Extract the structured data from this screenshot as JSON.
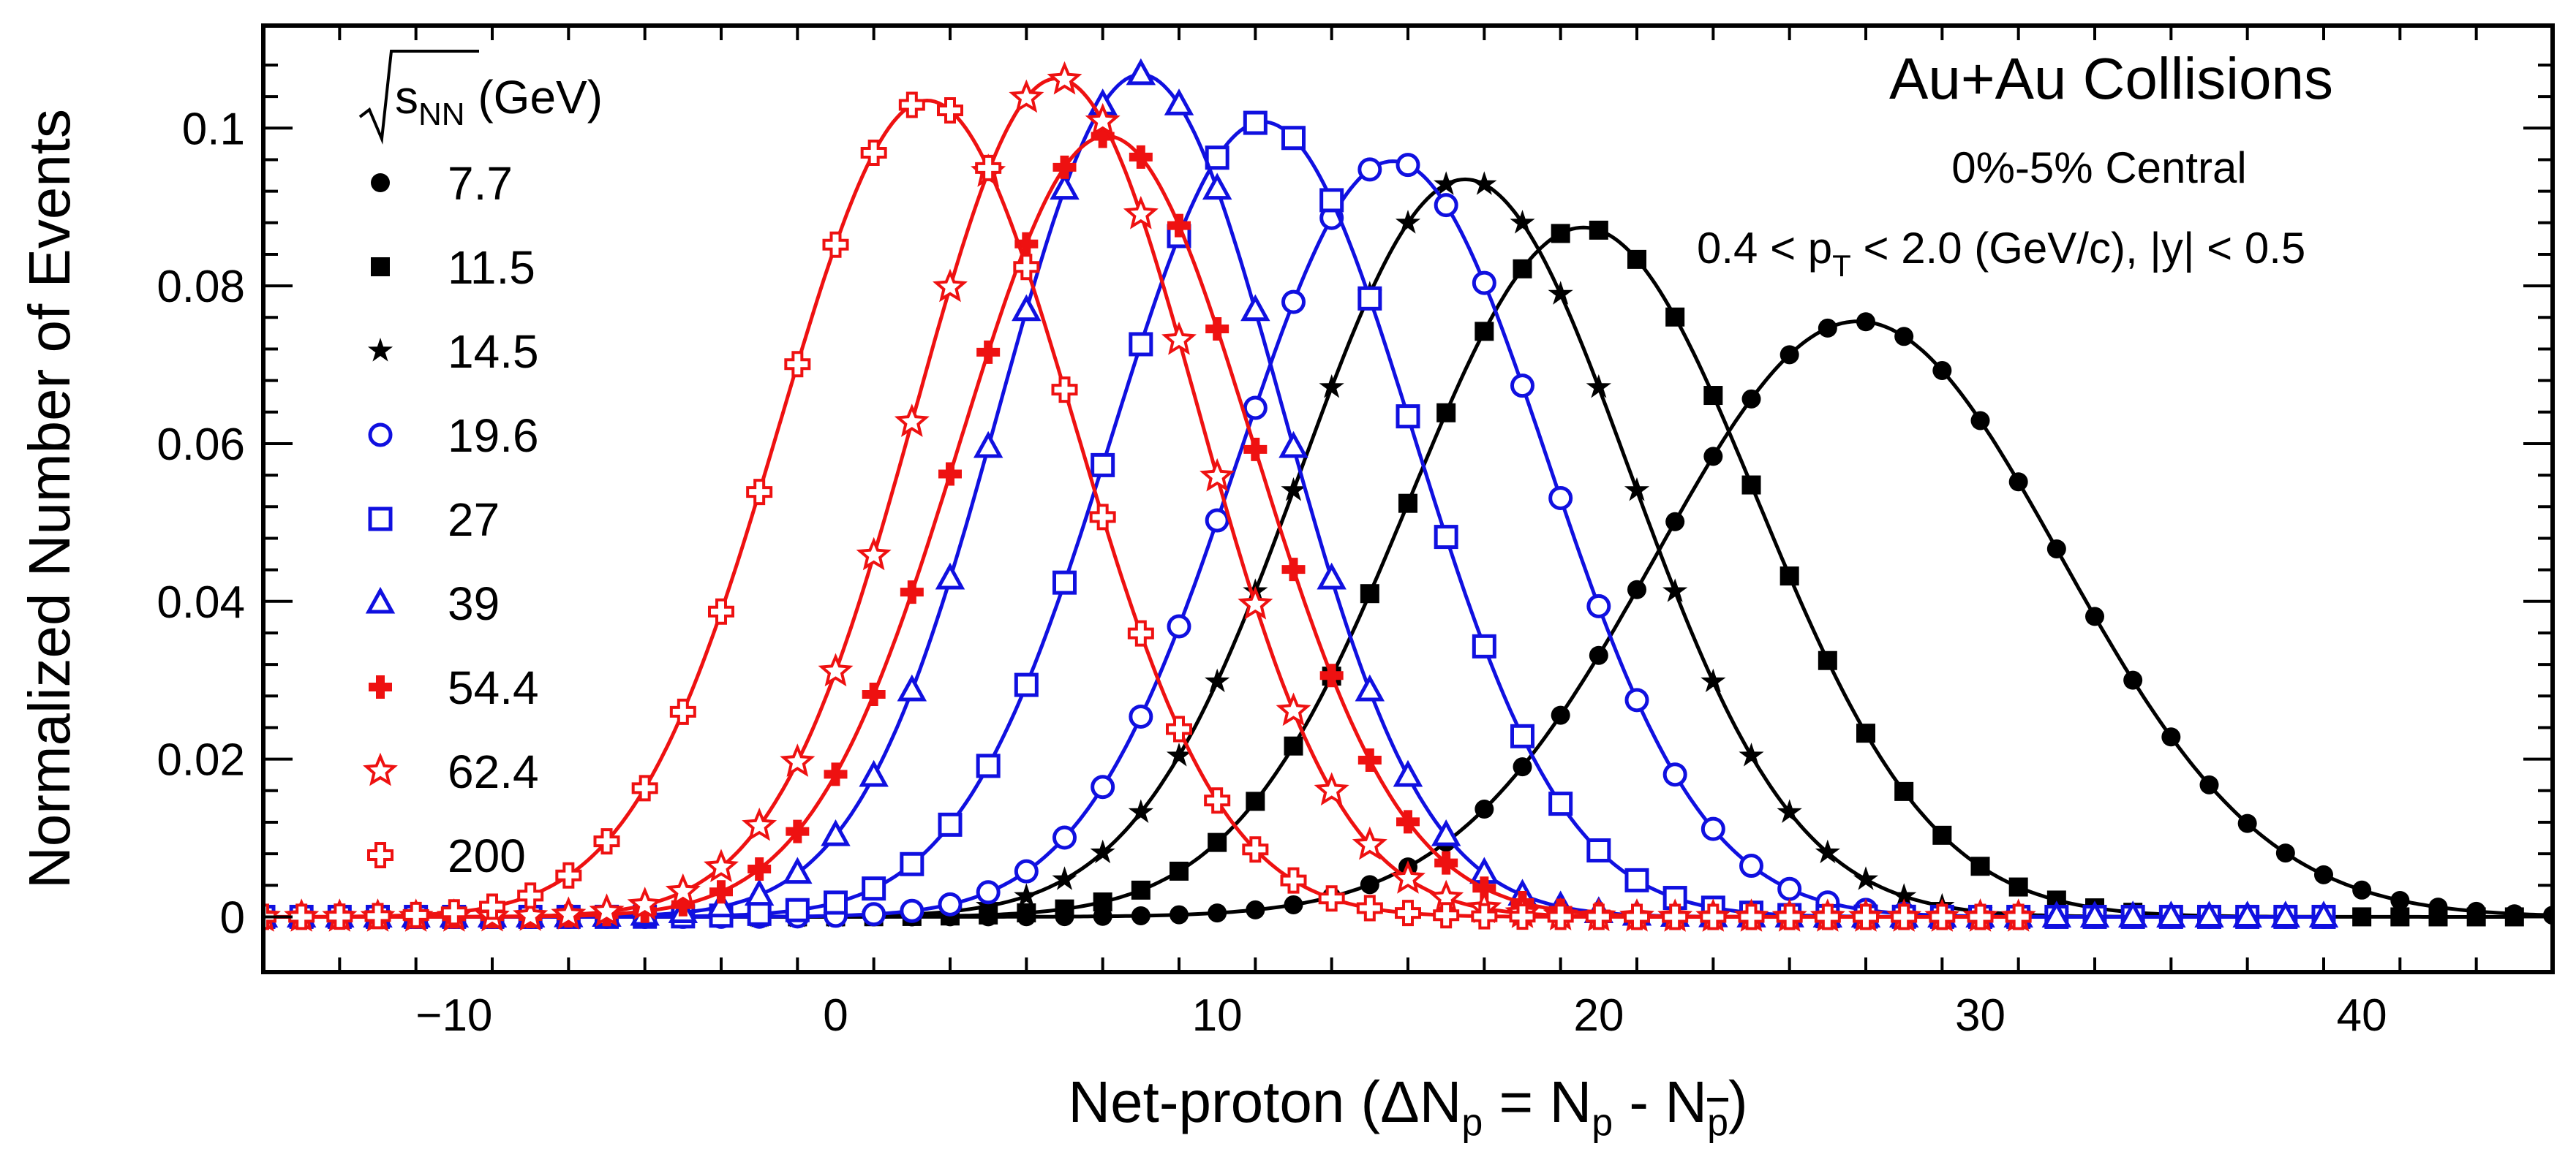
{
  "chart_data": {
    "type": "line",
    "title": "",
    "xlabel": "Net-proton (ΔNp = Np - Np̄)",
    "xlabel_parts": {
      "main": "Net-proton (ΔN",
      "sub1": "p",
      "mid": " = N",
      "sub2": "p",
      "end": " - N",
      "sub3": "p",
      "close": ")"
    },
    "ylabel": "Normalized Number of Events",
    "xlim": [
      -15,
      45
    ],
    "ylim": [
      -0.007,
      0.113
    ],
    "xticks": [
      -10,
      0,
      10,
      20,
      30,
      40
    ],
    "xtick_labels": [
      "−10",
      "0",
      "10",
      "20",
      "30",
      "40"
    ],
    "yticks": [
      0,
      0.02,
      0.04,
      0.06,
      0.08,
      0.1
    ],
    "ytick_labels": [
      "0",
      "0.02",
      "0.04",
      "0.06",
      "0.08",
      "0.1"
    ],
    "legend": {
      "header_sqrt": "s",
      "header_sub": "NN",
      "header_unit": " (GeV)",
      "placement": "top-left"
    },
    "annotations": {
      "system": "Au+Au Collisions",
      "centrality": "0%-5% Central",
      "kinematics_a": "0.4 < p",
      "kinematics_sub": "T",
      "kinematics_b": " < 2.0 (GeV/c), |y| < 0.5"
    },
    "series": [
      {
        "name": "7.7",
        "marker": "circle-filled",
        "color": "#000000",
        "mean": 26.8,
        "sigma": 5.3,
        "peak": 0.0755,
        "xmin": -15,
        "xmax": 45
      },
      {
        "name": "11.5",
        "marker": "square-filled",
        "color": "#000000",
        "mean": 19.6,
        "sigma": 4.55,
        "peak": 0.0874,
        "xmin": -15,
        "xmax": 44
      },
      {
        "name": "14.5",
        "marker": "star-filled",
        "color": "#000000",
        "mean": 16.5,
        "sigma": 4.3,
        "peak": 0.0935,
        "xmin": -15,
        "xmax": 39
      },
      {
        "name": "19.6",
        "marker": "circle-open",
        "color": "#1010e0",
        "mean": 14.6,
        "sigma": 4.05,
        "peak": 0.0958,
        "xmin": -15,
        "xmax": 39
      },
      {
        "name": "27",
        "marker": "square-open",
        "color": "#1010e0",
        "mean": 11.2,
        "sigma": 3.95,
        "peak": 0.1008,
        "xmin": -15,
        "xmax": 39
      },
      {
        "name": "39",
        "marker": "triangle-open",
        "color": "#1010e0",
        "mean": 8.0,
        "sigma": 3.7,
        "peak": 0.1068,
        "xmin": -15,
        "xmax": 39
      },
      {
        "name": "54.4",
        "marker": "cross-filled",
        "color": "#ee1111",
        "mean": 7.1,
        "sigma": 3.85,
        "peak": 0.099,
        "xmin": -15,
        "xmax": 31
      },
      {
        "name": "62.4",
        "marker": "star-open",
        "color": "#ee1111",
        "mean": 5.8,
        "sigma": 3.7,
        "peak": 0.1063,
        "xmin": -15,
        "xmax": 31
      },
      {
        "name": "200",
        "marker": "cross-open",
        "color": "#ee1111",
        "mean": 2.4,
        "sigma": 3.85,
        "peak": 0.1035,
        "xmin": -15,
        "xmax": 31
      }
    ]
  }
}
